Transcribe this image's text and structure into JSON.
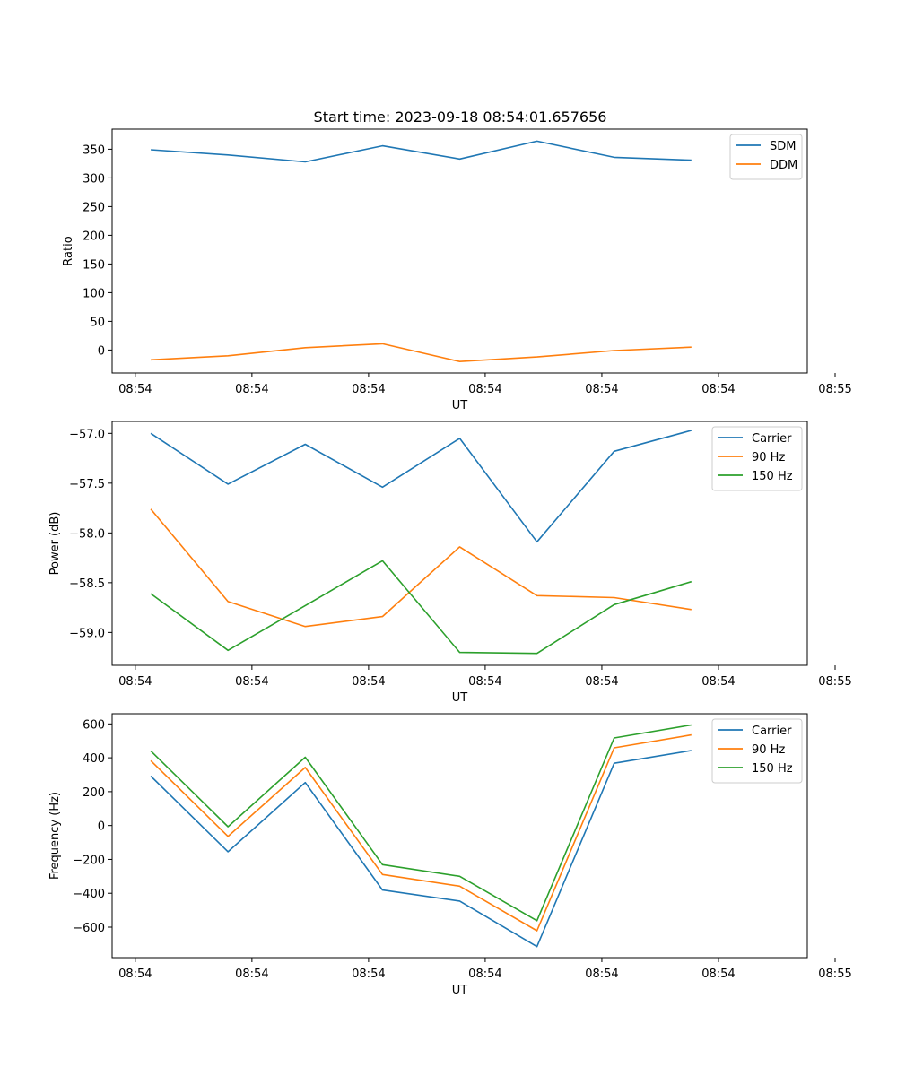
{
  "figure_title": "Start time: 2023-09-18 08:54:01.657656",
  "chart_data": [
    {
      "type": "line",
      "title": "Start time: 2023-09-18 08:54:01.657656",
      "xlabel": "UT",
      "ylabel": "Ratio",
      "xlim": [
        -0.5,
        8.5
      ],
      "ylim": [
        -40,
        385
      ],
      "x": [
        0,
        1,
        2,
        3,
        4,
        5,
        6,
        7
      ],
      "xticks": [
        -0.2,
        1.31,
        2.82,
        4.33,
        5.84,
        7.35,
        8.86
      ],
      "xtick_labels": [
        "08:54",
        "08:54",
        "08:54",
        "08:54",
        "08:54",
        "08:54",
        "08:55"
      ],
      "yticks": [
        0,
        50,
        100,
        150,
        200,
        250,
        300,
        350
      ],
      "ytick_labels": [
        "0",
        "50",
        "100",
        "150",
        "200",
        "250",
        "300",
        "350"
      ],
      "legend_position": "top-right",
      "series": [
        {
          "name": "SDM",
          "color": "#1f77b4",
          "values": [
            349,
            340,
            328,
            356,
            333,
            364,
            336,
            331
          ]
        },
        {
          "name": "DDM",
          "color": "#ff7f0e",
          "values": [
            -17,
            -10,
            4,
            11,
            -20,
            -12,
            -1,
            5
          ]
        }
      ]
    },
    {
      "type": "line",
      "title": "",
      "xlabel": "UT",
      "ylabel": "Power (dB)",
      "xlim": [
        -0.5,
        8.5
      ],
      "ylim": [
        -59.33,
        -56.88
      ],
      "x": [
        0,
        1,
        2,
        3,
        4,
        5,
        6,
        7
      ],
      "xticks": [
        -0.2,
        1.31,
        2.82,
        4.33,
        5.84,
        7.35,
        8.86
      ],
      "xtick_labels": [
        "08:54",
        "08:54",
        "08:54",
        "08:54",
        "08:54",
        "08:54",
        "08:55"
      ],
      "yticks": [
        -59.0,
        -58.5,
        -58.0,
        -57.5,
        -57.0
      ],
      "ytick_labels": [
        "−59.0",
        "−58.5",
        "−58.0",
        "−57.5",
        "−57.0"
      ],
      "legend_position": "top-right",
      "series": [
        {
          "name": "Carrier",
          "color": "#1f77b4",
          "values": [
            -57.0,
            -57.51,
            -57.11,
            -57.54,
            -57.05,
            -58.09,
            -57.18,
            -56.97
          ]
        },
        {
          "name": "90 Hz",
          "color": "#ff7f0e",
          "values": [
            -57.76,
            -58.69,
            -58.94,
            -58.84,
            -58.14,
            -58.63,
            -58.65,
            -58.77
          ]
        },
        {
          "name": "150 Hz",
          "color": "#2ca02c",
          "values": [
            -58.61,
            -59.18,
            -58.73,
            -58.28,
            -59.2,
            -59.21,
            -58.72,
            -58.49
          ]
        }
      ]
    },
    {
      "type": "line",
      "title": "",
      "xlabel": "UT",
      "ylabel": "Frequency (Hz)",
      "xlim": [
        -0.5,
        8.5
      ],
      "ylim": [
        -780,
        660
      ],
      "x": [
        0,
        1,
        2,
        3,
        4,
        5,
        6,
        7
      ],
      "xticks": [
        -0.2,
        1.31,
        2.82,
        4.33,
        5.84,
        7.35,
        8.86
      ],
      "xtick_labels": [
        "08:54",
        "08:54",
        "08:54",
        "08:54",
        "08:54",
        "08:54",
        "08:55"
      ],
      "yticks": [
        -600,
        -400,
        -200,
        0,
        200,
        400,
        600
      ],
      "ytick_labels": [
        "−600",
        "−400",
        "−200",
        "0",
        "200",
        "400",
        "600"
      ],
      "legend_position": "top-right",
      "series": [
        {
          "name": "Carrier",
          "color": "#1f77b4",
          "values": [
            292,
            -155,
            254,
            -381,
            -446,
            -715,
            368,
            443
          ]
        },
        {
          "name": "90 Hz",
          "color": "#ff7f0e",
          "values": [
            383,
            -64,
            343,
            -289,
            -358,
            -621,
            459,
            535
          ]
        },
        {
          "name": "150 Hz",
          "color": "#2ca02c",
          "values": [
            441,
            -7,
            403,
            -231,
            -300,
            -562,
            517,
            594
          ]
        }
      ]
    }
  ]
}
